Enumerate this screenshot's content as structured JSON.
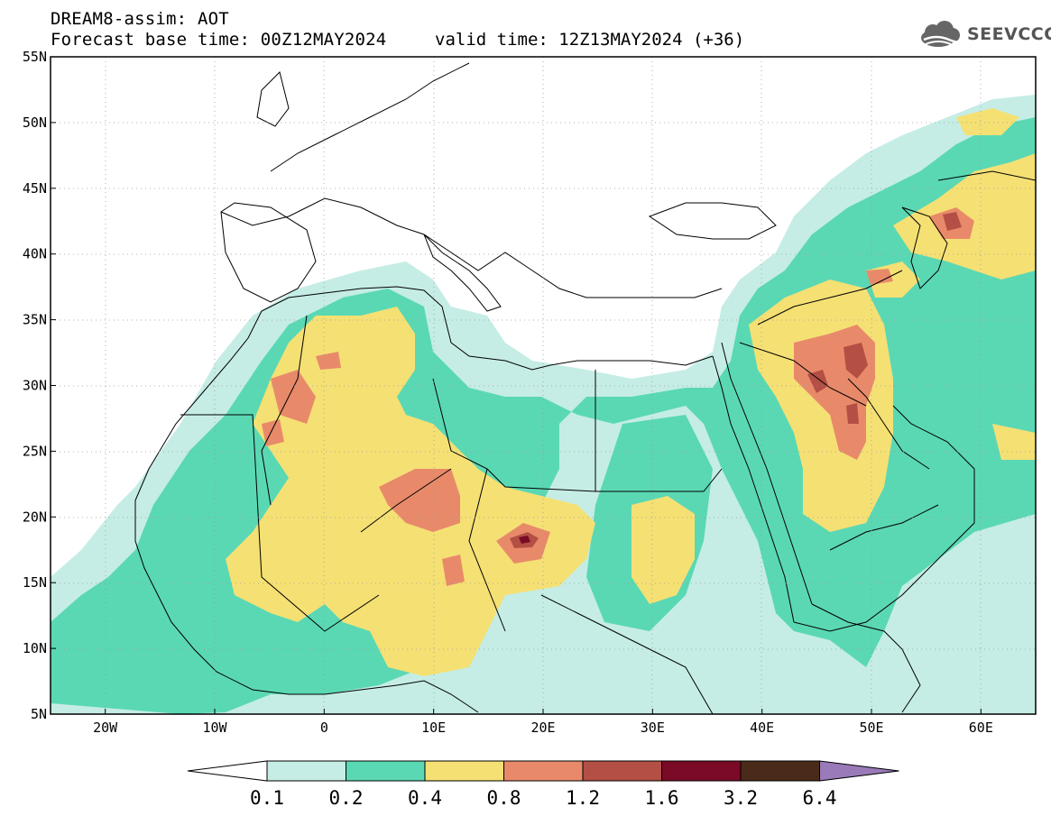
{
  "header": {
    "title": "DREAM8-assim: AOT",
    "base_time": "Forecast base time: 00Z12MAY2024",
    "valid_time": "valid time: 12Z13MAY2024 (+36)"
  },
  "logo": {
    "text": "SEEVCCC",
    "icon": "cloud-icon"
  },
  "axes": {
    "lat_ticks": [
      "55N",
      "50N",
      "45N",
      "40N",
      "35N",
      "30N",
      "25N",
      "20N",
      "15N",
      "10N",
      "5N"
    ],
    "lon_ticks": [
      "20W",
      "10W",
      "0",
      "10E",
      "20E",
      "30E",
      "40E",
      "50E",
      "60E"
    ],
    "lat_range": [
      5,
      55
    ],
    "lon_range": [
      -25,
      65
    ]
  },
  "colorbar": {
    "labels": [
      "0.1",
      "0.2",
      "0.4",
      "0.8",
      "1.2",
      "1.6",
      "3.2",
      "6.4"
    ],
    "colors": [
      "#ffffff",
      "#c5ede5",
      "#5ad8b4",
      "#f5e074",
      "#e88a6a",
      "#b34f44",
      "#7a0a26",
      "#4a2a18",
      "#9a7ab8"
    ]
  },
  "map_data": {
    "levels": [
      0.1,
      0.2,
      0.4,
      0.8,
      1.2,
      1.6
    ],
    "level_colors": [
      "#c5ede5",
      "#5ad8b4",
      "#f5e074",
      "#e88a6a",
      "#b34f44",
      "#7a0a26"
    ],
    "plumes": [
      {
        "lon": 20,
        "lat": 19,
        "level": 0.4
      },
      {
        "lon": 45,
        "lat": 30,
        "level": 0.8
      },
      {
        "lon": 55,
        "lat": 44,
        "level": 0.8
      },
      {
        "lon": 12,
        "lat": 21,
        "level": 1.2
      },
      {
        "lon": -2,
        "lat": 29,
        "level": 1.2
      },
      {
        "lon": 19,
        "lat": 18,
        "level": 1.6
      },
      {
        "lon": 46,
        "lat": 31,
        "level": 1.6
      }
    ]
  }
}
